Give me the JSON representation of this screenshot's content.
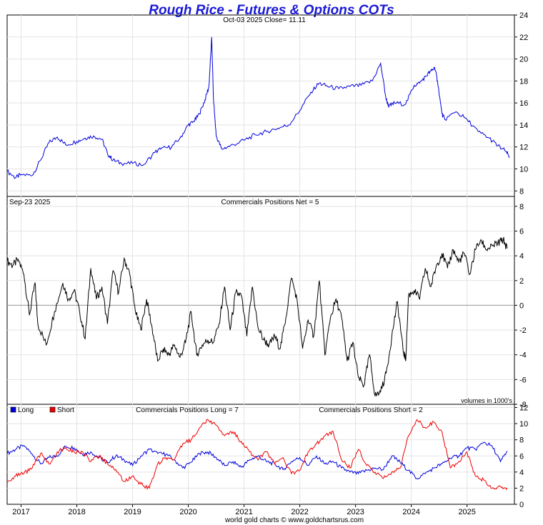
{
  "title": "Rough Rice - Futures & Options COTs",
  "footer": "world gold charts © www.goldchartsrus.com",
  "colors": {
    "title": "#1a1ad6",
    "price": "#0000dd",
    "net": "#000000",
    "long": "#0000dd",
    "short": "#ee0000",
    "zero_line": "#999999"
  },
  "chart_data": [
    {
      "type": "line",
      "panel": "price",
      "subtitle": "Oct-03  2025   Close= 11.11",
      "ylim": [
        7.5,
        24
      ],
      "yticks": [
        8,
        10,
        12,
        14,
        16,
        18,
        20,
        22,
        24
      ],
      "xlim": [
        2016.75,
        2025.85
      ],
      "series": [
        {
          "x": [
            2016.75,
            2016.9,
            2017.0,
            2017.2,
            2017.35,
            2017.5,
            2017.65,
            2017.8,
            2018.0,
            2018.15,
            2018.3,
            2018.45,
            2018.55,
            2018.65,
            2018.8,
            2019.0,
            2019.2,
            2019.4,
            2019.5,
            2019.7,
            2019.85,
            2020.0,
            2020.1,
            2020.2,
            2020.3,
            2020.37,
            2020.42,
            2020.45,
            2020.5,
            2020.6,
            2020.75,
            2021.0,
            2021.2,
            2021.4,
            2021.6,
            2021.8,
            2022.0,
            2022.2,
            2022.35,
            2022.5,
            2022.7,
            2022.9,
            2023.1,
            2023.3,
            2023.45,
            2023.55,
            2023.6,
            2023.7,
            2023.9,
            2024.05,
            2024.15,
            2024.25,
            2024.35,
            2024.42,
            2024.47,
            2024.55,
            2024.6,
            2024.8,
            2025.0,
            2025.2,
            2025.4,
            2025.55,
            2025.7,
            2025.76
          ],
          "y": [
            9.8,
            9.2,
            9.5,
            9.4,
            10.8,
            12.4,
            12.9,
            12.2,
            12.5,
            12.8,
            13.0,
            12.7,
            11.4,
            10.8,
            10.5,
            10.5,
            10.4,
            11.5,
            11.8,
            12.0,
            12.8,
            14.0,
            14.3,
            15.0,
            16.3,
            17.5,
            22.0,
            16.5,
            13.0,
            11.8,
            12.1,
            12.6,
            13.1,
            13.4,
            13.7,
            14.0,
            15.3,
            17.0,
            17.8,
            17.5,
            17.3,
            17.5,
            17.6,
            18.0,
            19.6,
            16.3,
            15.7,
            16.0,
            15.9,
            17.6,
            17.8,
            18.4,
            18.9,
            19.2,
            18.0,
            15.0,
            14.5,
            15.2,
            14.5,
            13.4,
            12.8,
            12.1,
            11.6,
            11.1
          ]
        }
      ]
    },
    {
      "type": "line",
      "panel": "net",
      "date_label": "Sep-23  2025",
      "subtitle": "Commercials Positions Net = 5",
      "note": "volumes in 1000's",
      "ylim": [
        -8,
        8.8
      ],
      "yticks": [
        -8,
        -6,
        -4,
        -2,
        0,
        2,
        4,
        6,
        8
      ],
      "xlim": [
        2016.75,
        2025.85
      ],
      "series": [
        {
          "x": [
            2016.75,
            2016.85,
            2016.95,
            2017.05,
            2017.15,
            2017.25,
            2017.3,
            2017.45,
            2017.6,
            2017.75,
            2017.85,
            2017.95,
            2018.05,
            2018.15,
            2018.25,
            2018.35,
            2018.45,
            2018.55,
            2018.65,
            2018.75,
            2018.85,
            2018.95,
            2019.05,
            2019.15,
            2019.25,
            2019.35,
            2019.45,
            2019.55,
            2019.65,
            2019.75,
            2019.85,
            2019.95,
            2020.05,
            2020.15,
            2020.25,
            2020.35,
            2020.45,
            2020.55,
            2020.65,
            2020.75,
            2020.85,
            2020.95,
            2021.05,
            2021.15,
            2021.25,
            2021.35,
            2021.45,
            2021.55,
            2021.65,
            2021.75,
            2021.85,
            2021.95,
            2022.05,
            2022.15,
            2022.25,
            2022.35,
            2022.45,
            2022.55,
            2022.65,
            2022.75,
            2022.85,
            2022.95,
            2023.05,
            2023.15,
            2023.25,
            2023.35,
            2023.45,
            2023.55,
            2023.65,
            2023.75,
            2023.85,
            2023.9,
            2023.95,
            2024.05,
            2024.15,
            2024.25,
            2024.35,
            2024.45,
            2024.55,
            2024.65,
            2024.75,
            2024.85,
            2024.95,
            2025.05,
            2025.15,
            2025.25,
            2025.35,
            2025.45,
            2025.55,
            2025.65,
            2025.72
          ],
          "y": [
            3.6,
            3.2,
            3.7,
            2.5,
            -0.8,
            1.8,
            -1.5,
            -3.2,
            -0.5,
            1.8,
            0.5,
            1.2,
            -0.5,
            -2.7,
            3.0,
            0.5,
            1.5,
            -1.5,
            2.8,
            1.0,
            3.8,
            2.5,
            -0.5,
            -2.0,
            0.5,
            -1.8,
            -4.5,
            -3.5,
            -4.0,
            -3.2,
            -4.2,
            -3.0,
            -0.5,
            -4.0,
            -3.2,
            -2.8,
            -3.0,
            -1.5,
            1.5,
            -2.0,
            1.0,
            0.8,
            -2.5,
            1.5,
            -1.8,
            -2.8,
            -3.2,
            -2.5,
            -3.5,
            -1.0,
            2.2,
            0.5,
            -3.5,
            -1.2,
            -2.5,
            2.0,
            -4.0,
            -1.0,
            0.5,
            -1.0,
            -4.5,
            -3.0,
            -5.8,
            -6.5,
            -4.0,
            -7.3,
            -7.0,
            -5.5,
            -2.5,
            0.3,
            -3.5,
            -4.5,
            0.8,
            1.2,
            0.5,
            3.0,
            1.5,
            3.2,
            4.2,
            3.0,
            4.5,
            3.5,
            4.2,
            2.5,
            4.5,
            5.3,
            4.5,
            4.8,
            5.0,
            5.3,
            4.6
          ]
        }
      ]
    },
    {
      "type": "line",
      "panel": "long-short",
      "subtitle_long": "Commercials Positions Long = 7",
      "subtitle_short": "Commercials Positions Short = 2",
      "legend": [
        "Long",
        "Short"
      ],
      "ylim": [
        0,
        12.4
      ],
      "yticks": [
        0,
        2,
        4,
        6,
        8,
        10,
        12
      ],
      "xlim": [
        2016.75,
        2025.85
      ],
      "xticks": [
        2017,
        2018,
        2019,
        2020,
        2021,
        2022,
        2023,
        2024,
        2025
      ],
      "series": [
        {
          "name": "Long",
          "x": [
            2016.75,
            2016.9,
            2017.05,
            2017.2,
            2017.35,
            2017.5,
            2017.65,
            2017.8,
            2017.95,
            2018.1,
            2018.25,
            2018.4,
            2018.55,
            2018.7,
            2018.85,
            2019.0,
            2019.15,
            2019.3,
            2019.45,
            2019.6,
            2019.75,
            2019.9,
            2020.05,
            2020.2,
            2020.35,
            2020.5,
            2020.65,
            2020.8,
            2020.95,
            2021.1,
            2021.25,
            2021.4,
            2021.55,
            2021.7,
            2021.85,
            2022.0,
            2022.15,
            2022.3,
            2022.45,
            2022.6,
            2022.75,
            2022.9,
            2023.05,
            2023.2,
            2023.35,
            2023.5,
            2023.65,
            2023.8,
            2023.95,
            2024.1,
            2024.25,
            2024.4,
            2024.55,
            2024.7,
            2024.85,
            2025.0,
            2025.15,
            2025.3,
            2025.45,
            2025.6,
            2025.72
          ],
          "y": [
            6.3,
            6.8,
            7.3,
            6.2,
            5.0,
            5.8,
            6.0,
            7.2,
            7.0,
            6.2,
            6.5,
            5.8,
            5.2,
            6.0,
            5.5,
            4.8,
            6.0,
            6.8,
            6.3,
            6.2,
            5.5,
            4.5,
            5.2,
            6.3,
            6.5,
            5.8,
            4.8,
            5.3,
            4.6,
            5.5,
            6.0,
            5.3,
            5.0,
            4.3,
            5.3,
            5.8,
            4.8,
            6.0,
            5.0,
            5.3,
            4.5,
            4.0,
            3.8,
            4.2,
            4.5,
            4.3,
            6.0,
            5.2,
            4.2,
            3.2,
            3.8,
            4.5,
            5.0,
            5.7,
            6.0,
            7.0,
            6.8,
            7.7,
            7.2,
            5.3,
            6.6
          ]
        },
        {
          "name": "Short",
          "x": [
            2016.75,
            2016.9,
            2017.05,
            2017.2,
            2017.35,
            2017.5,
            2017.65,
            2017.8,
            2017.95,
            2018.1,
            2018.25,
            2018.4,
            2018.55,
            2018.7,
            2018.85,
            2019.0,
            2019.15,
            2019.3,
            2019.45,
            2019.6,
            2019.75,
            2019.9,
            2020.05,
            2020.2,
            2020.35,
            2020.5,
            2020.65,
            2020.8,
            2020.95,
            2021.1,
            2021.25,
            2021.4,
            2021.55,
            2021.7,
            2021.85,
            2022.0,
            2022.15,
            2022.3,
            2022.45,
            2022.6,
            2022.75,
            2022.9,
            2023.05,
            2023.2,
            2023.35,
            2023.5,
            2023.65,
            2023.8,
            2023.95,
            2024.1,
            2024.25,
            2024.4,
            2024.55,
            2024.7,
            2024.85,
            2025.0,
            2025.15,
            2025.3,
            2025.45,
            2025.6,
            2025.72
          ],
          "y": [
            2.8,
            3.5,
            3.8,
            4.5,
            6.3,
            5.0,
            6.5,
            7.0,
            6.5,
            6.5,
            5.3,
            6.0,
            5.0,
            4.3,
            2.8,
            3.5,
            2.5,
            2.0,
            5.0,
            5.8,
            5.5,
            7.5,
            8.0,
            9.5,
            10.5,
            9.8,
            8.5,
            9.0,
            7.8,
            6.5,
            5.5,
            6.5,
            5.0,
            5.8,
            3.8,
            4.2,
            6.5,
            7.5,
            8.5,
            9.0,
            5.5,
            4.5,
            6.8,
            4.8,
            4.0,
            3.2,
            4.0,
            4.5,
            8.5,
            10.5,
            9.5,
            10.2,
            9.0,
            4.5,
            5.3,
            6.5,
            3.5,
            3.0,
            2.0,
            2.2,
            2.0
          ]
        }
      ]
    }
  ]
}
